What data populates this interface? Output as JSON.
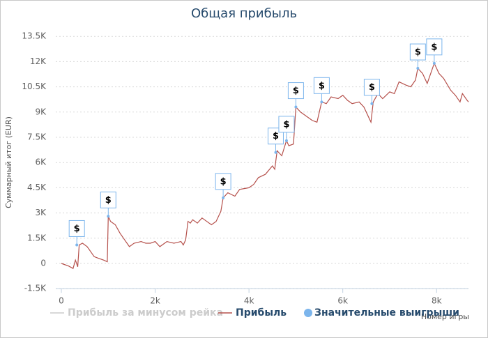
{
  "chart_data": {
    "type": "line",
    "title": "Общая прибыль",
    "x_label": "Номер игры",
    "y_label": "Суммарный итог (EUR)",
    "xlim": [
      0,
      8680
    ],
    "ylim": [
      -1500,
      13500
    ],
    "xticks": [
      0,
      {
        "value": 2000,
        "label": "2k"
      },
      {
        "value": 4000,
        "label": "4k"
      },
      {
        "value": 6000,
        "label": "6k"
      },
      {
        "value": 8000,
        "label": "8k"
      }
    ],
    "yticks": [
      {
        "value": -1500,
        "label": "-1.5K"
      },
      0,
      {
        "value": 1500,
        "label": "1.5K"
      },
      {
        "value": 3000,
        "label": "3K"
      },
      {
        "value": 4500,
        "label": "4.5K"
      },
      {
        "value": 6000,
        "label": "6K"
      },
      {
        "value": 7500,
        "label": "7.5K"
      },
      {
        "value": 9000,
        "label": "9K"
      },
      {
        "value": 10500,
        "label": "10.5K"
      },
      {
        "value": 12000,
        "label": "12K"
      },
      {
        "value": 13500,
        "label": "13.5K"
      }
    ],
    "grid": true,
    "series": [
      {
        "name": "Прибыль за минусом рейка",
        "color": "#cccccc",
        "visible": false
      },
      {
        "name": "Прибыль",
        "color": "#b5504b",
        "x": [
          0,
          150,
          250,
          300,
          350,
          380,
          450,
          550,
          600,
          700,
          800,
          900,
          980,
          1000,
          1050,
          1150,
          1250,
          1350,
          1450,
          1550,
          1700,
          1800,
          1900,
          2000,
          2100,
          2250,
          2400,
          2550,
          2600,
          2650,
          2700,
          2750,
          2800,
          2900,
          3000,
          3100,
          3200,
          3300,
          3400,
          3450,
          3550,
          3700,
          3800,
          4000,
          4100,
          4200,
          4350,
          4500,
          4550,
          4600,
          4700,
          4800,
          4850,
          4950,
          5000,
          5100,
          5250,
          5350,
          5450,
          5550,
          5650,
          5750,
          5900,
          6000,
          6100,
          6200,
          6350,
          6450,
          6600,
          6650,
          6750,
          6850,
          7000,
          7100,
          7200,
          7350,
          7450,
          7550,
          7600,
          7700,
          7800,
          7950,
          8050,
          8150,
          8300,
          8400,
          8500,
          8550,
          8650,
          8680
        ],
        "values": [
          0,
          -150,
          -300,
          200,
          -200,
          1100,
          1200,
          1000,
          800,
          400,
          300,
          200,
          100,
          2800,
          2500,
          2300,
          1800,
          1400,
          1000,
          1200,
          1300,
          1200,
          1200,
          1300,
          1000,
          1300,
          1200,
          1300,
          1100,
          1400,
          2500,
          2400,
          2600,
          2400,
          2700,
          2500,
          2300,
          2500,
          3100,
          3900,
          4200,
          4000,
          4400,
          4500,
          4700,
          5100,
          5300,
          5800,
          5600,
          6700,
          6400,
          7300,
          7000,
          7100,
          9300,
          9000,
          8700,
          8500,
          8400,
          9600,
          9500,
          9900,
          9800,
          10000,
          9700,
          9500,
          9600,
          9300,
          8400,
          9600,
          10100,
          9800,
          10200,
          10100,
          10800,
          10600,
          10500,
          10900,
          11600,
          11300,
          10700,
          11900,
          11300,
          11000,
          10300,
          10000,
          9600,
          10100,
          9700,
          9600
        ]
      },
      {
        "name": "Значительные выигрыши",
        "color": "#7cb5ec",
        "title": "$",
        "x": [
          330,
          1000,
          3450,
          4570,
          4800,
          5000,
          5550,
          6620,
          7600,
          7950
        ],
        "values": [
          1100,
          2800,
          3900,
          6600,
          7300,
          9300,
          9600,
          9500,
          11600,
          11900
        ]
      }
    ]
  }
}
